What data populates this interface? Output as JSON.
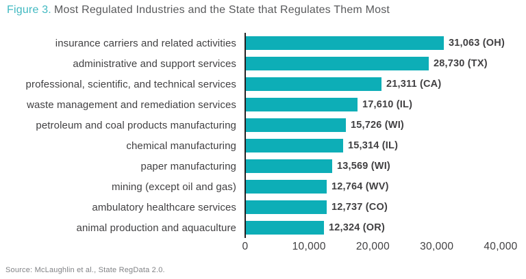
{
  "title": {
    "figure_label": "Figure 3.",
    "text": "Most Regulated Industries and the State that Regulates Them Most"
  },
  "source": "Source: McLaughlin et al., State RegData 2.0.",
  "colors": {
    "bar": "#0daeb7",
    "figure_label_accent": "#41b9c1",
    "title_text": "#58595b",
    "axis_line": "#231f20",
    "label_text": "#414042",
    "source_text": "#808285"
  },
  "chart_data": {
    "type": "bar",
    "orientation": "horizontal",
    "title": "Figure 3. Most Regulated Industries and the State that Regulates Them Most",
    "xlabel": "",
    "ylabel": "",
    "xlim": [
      0,
      40000
    ],
    "x_ticks": [
      {
        "value": 0,
        "label": "0"
      },
      {
        "value": 10000,
        "label": "10,000"
      },
      {
        "value": 20000,
        "label": "20,000"
      },
      {
        "value": 30000,
        "label": "30,000"
      },
      {
        "value": 40000,
        "label": "40,000"
      }
    ],
    "grid": false,
    "legend": false,
    "categories": [
      "insurance carriers and related activities",
      "administrative and support services",
      "professional, scientific, and technical services",
      "waste management and remediation services",
      "petroleum and coal products manufacturing",
      "chemical manufacturing",
      "paper manufacturing",
      "mining (except oil and gas)",
      "ambulatory healthcare services",
      "animal production and aquaculture"
    ],
    "values": [
      31063,
      28730,
      21311,
      17610,
      15726,
      15314,
      13569,
      12764,
      12737,
      12324
    ],
    "states": [
      "OH",
      "TX",
      "CA",
      "IL",
      "WI",
      "IL",
      "WI",
      "WV",
      "CO",
      "OR"
    ],
    "value_labels": [
      "31,063 (OH)",
      "28,730 (TX)",
      "21,311 (CA)",
      "17,610 (IL)",
      "15,726 (WI)",
      "15,314 (IL)",
      "13,569 (WI)",
      "12,764 (WV)",
      "12,737 (CO)",
      "12,324 (OR)"
    ]
  }
}
